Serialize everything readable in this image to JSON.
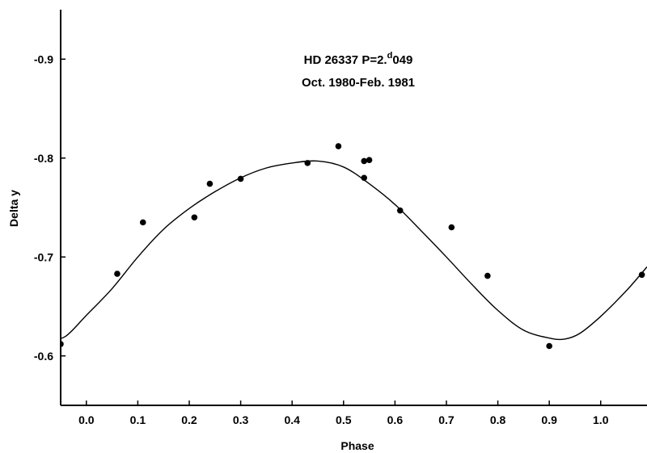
{
  "chart_data": {
    "type": "scatter",
    "title_line1_prefix": "HD 26337  P=2.",
    "title_line1_sup": "d",
    "title_line1_suffix": "049",
    "title_line2": "Oct. 1980-Feb. 1981",
    "xlabel": "Phase",
    "ylabel": "Delta y",
    "xlim": [
      -0.05,
      1.09
    ],
    "ylim": [
      -0.55,
      -0.95
    ],
    "x_ticks": [
      "0.0",
      "0.1",
      "0.2",
      "0.3",
      "0.4",
      "0.5",
      "0.6",
      "0.7",
      "0.8",
      "0.9",
      "1.0"
    ],
    "x_tick_values": [
      0.0,
      0.1,
      0.2,
      0.3,
      0.4,
      0.5,
      0.6,
      0.7,
      0.8,
      0.9,
      1.0
    ],
    "y_ticks": [
      "-0.6",
      "-0.7",
      "-0.8",
      "-0.9"
    ],
    "y_tick_values": [
      -0.6,
      -0.7,
      -0.8,
      -0.9
    ],
    "series": [
      {
        "kind": "points",
        "x": [
          -0.05,
          0.06,
          0.11,
          0.21,
          0.24,
          0.3,
          0.43,
          0.49,
          0.54,
          0.54,
          0.55,
          0.61,
          0.71,
          0.78,
          0.9,
          1.08
        ],
        "y": [
          -0.612,
          -0.683,
          -0.735,
          -0.74,
          -0.774,
          -0.779,
          -0.795,
          -0.812,
          -0.78,
          -0.797,
          -0.798,
          -0.747,
          -0.73,
          -0.681,
          -0.61,
          -0.682
        ]
      },
      {
        "kind": "curve",
        "x": [
          -0.07,
          -0.04,
          0.0,
          0.05,
          0.1,
          0.15,
          0.2,
          0.25,
          0.3,
          0.35,
          0.4,
          0.45,
          0.5,
          0.55,
          0.6,
          0.65,
          0.7,
          0.75,
          0.8,
          0.85,
          0.9,
          0.93,
          0.96,
          1.0,
          1.05,
          1.09
        ],
        "y": [
          -0.616,
          -0.62,
          -0.641,
          -0.668,
          -0.7,
          -0.728,
          -0.749,
          -0.766,
          -0.78,
          -0.79,
          -0.795,
          -0.797,
          -0.791,
          -0.774,
          -0.753,
          -0.727,
          -0.7,
          -0.672,
          -0.646,
          -0.626,
          -0.618,
          -0.617,
          -0.623,
          -0.64,
          -0.666,
          -0.69
        ]
      }
    ],
    "colors": {
      "ink": "#000000",
      "background": "#ffffff"
    },
    "grid": false
  }
}
